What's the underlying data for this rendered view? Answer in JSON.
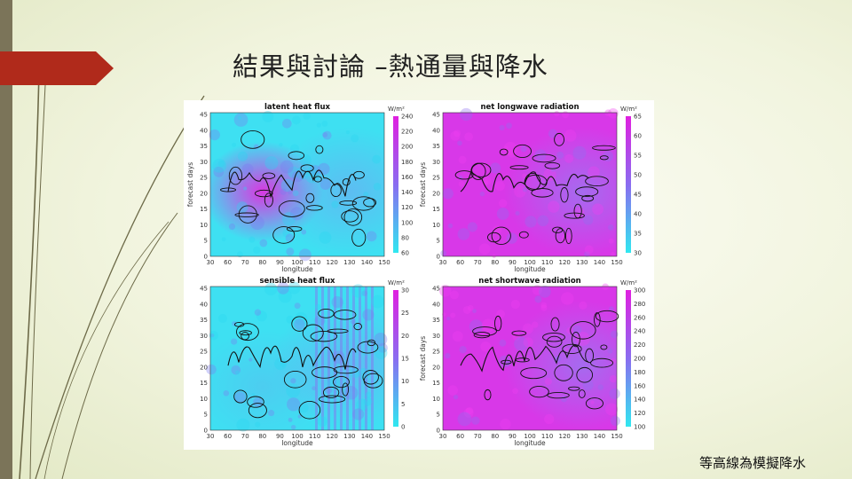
{
  "slide": {
    "title": "結果與討論 –熱通量與降水",
    "caption": "等高線為模擬降水"
  },
  "colors": {
    "accent_tab": "#b02a1b",
    "left_bar": "#7b7459",
    "line": "#6d6a48"
  },
  "figure": {
    "panels": [
      {
        "title": "latent heat flux",
        "unit": "W/m²",
        "xlabel": "",
        "ylabel": "forecast days",
        "colorbar": {
          "ticks": [
            240,
            220,
            200,
            180,
            160,
            140,
            120,
            100,
            80,
            60
          ],
          "from": "#e020e0",
          "to": "#30e8f0"
        },
        "field": {
          "base": "cyan",
          "blob": "magenta-left"
        }
      },
      {
        "title": "net longwave radiation",
        "unit": "W/m²",
        "xlabel": "",
        "ylabel": "forecast days",
        "colorbar": {
          "ticks": [
            65,
            60,
            55,
            50,
            45,
            40,
            35,
            30
          ],
          "from": "#e020e0",
          "to": "#30e8f0"
        },
        "field": {
          "base": "magenta",
          "blob": "violet"
        }
      },
      {
        "title": "sensible heat flux",
        "unit": "W/m²",
        "xlabel": "longitude",
        "ylabel": "",
        "colorbar": {
          "ticks": [
            30,
            25,
            20,
            15,
            10,
            5,
            0
          ],
          "from": "#e020e0",
          "to": "#30e8f0"
        },
        "field": {
          "base": "cyan",
          "blob": "stripes"
        }
      },
      {
        "title": "net shortwave radiation",
        "unit": "W/m²",
        "xlabel": "longitude",
        "ylabel": "forecast days",
        "colorbar": {
          "ticks": [
            300,
            280,
            260,
            240,
            220,
            200,
            180,
            160,
            140,
            120,
            100
          ],
          "from": "#e020e0",
          "to": "#30e8f0"
        },
        "field": {
          "base": "magenta",
          "blob": "violet"
        }
      }
    ],
    "x_ticks": [
      30,
      60,
      70,
      80,
      90,
      100,
      110,
      120,
      130,
      140,
      150
    ],
    "y_ticks": [
      45,
      40,
      35,
      30,
      25,
      20,
      15,
      10,
      5,
      0
    ],
    "bottom_xlabel": "longitude"
  }
}
